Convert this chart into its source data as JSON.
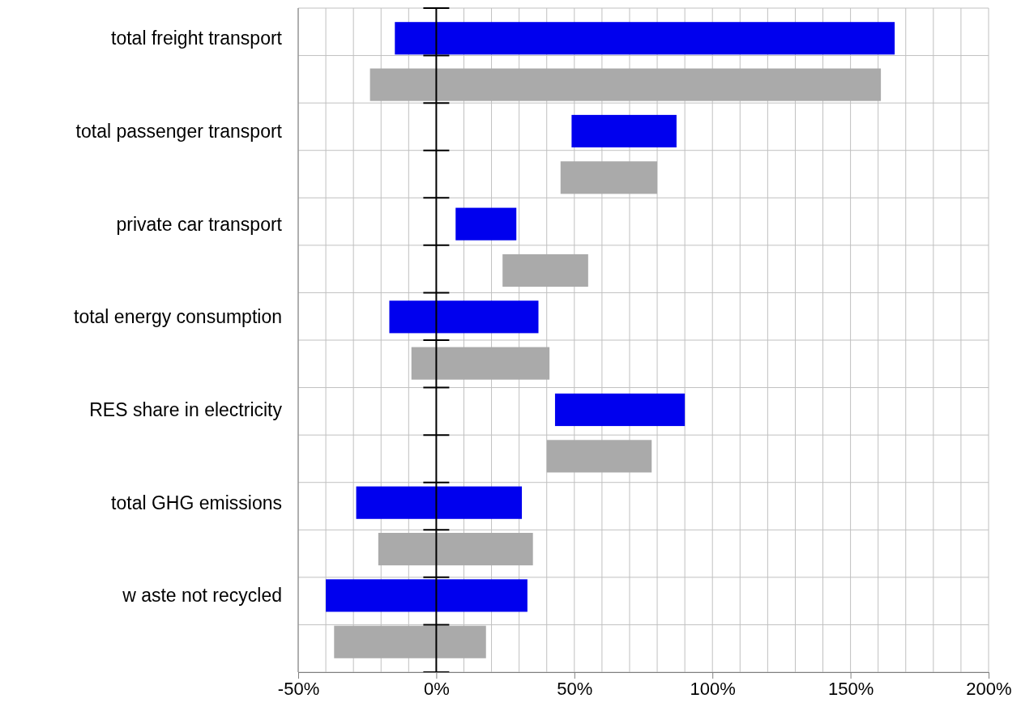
{
  "chart_data": {
    "type": "bar",
    "orientation": "horizontal",
    "categories": [
      "total freight transport",
      "total passenger transport",
      "private car transport",
      "total energy consumption",
      "RES share in electricity",
      "total GHG emissions",
      "w aste not recycled"
    ],
    "series": [
      {
        "color": "#0000ee",
        "base": [
          -15,
          49,
          7,
          -17,
          43,
          -29,
          -40
        ],
        "values": [
          181,
          38,
          22,
          54,
          47,
          60,
          73
        ]
      },
      {
        "color": "#aaaaaa",
        "base": [
          -24,
          45,
          24,
          -9,
          40,
          -21,
          -37
        ],
        "values": [
          185,
          35,
          31,
          50,
          38,
          56,
          55
        ]
      }
    ],
    "xlim": [
      -50,
      200
    ],
    "xticks": [
      {
        "value": -50,
        "label": "-50%"
      },
      {
        "value": -40,
        "label": null
      },
      {
        "value": -30,
        "label": null
      },
      {
        "value": -20,
        "label": null
      },
      {
        "value": -10,
        "label": null
      },
      {
        "value": 0,
        "label": "0%"
      },
      {
        "value": 10,
        "label": null
      },
      {
        "value": 20,
        "label": null
      },
      {
        "value": 30,
        "label": null
      },
      {
        "value": 40,
        "label": null
      },
      {
        "value": 50,
        "label": "50%"
      },
      {
        "value": 60,
        "label": null
      },
      {
        "value": 70,
        "label": null
      },
      {
        "value": 80,
        "label": null
      },
      {
        "value": 90,
        "label": null
      },
      {
        "value": 100,
        "label": "100%"
      },
      {
        "value": 110,
        "label": null
      },
      {
        "value": 120,
        "label": null
      },
      {
        "value": 130,
        "label": null
      },
      {
        "value": 140,
        "label": null
      },
      {
        "value": 150,
        "label": "150%"
      },
      {
        "value": 160,
        "label": null
      },
      {
        "value": 170,
        "label": null
      },
      {
        "value": 180,
        "label": null
      },
      {
        "value": 190,
        "label": null
      },
      {
        "value": 200,
        "label": "200%"
      }
    ],
    "grid": true,
    "ref_lines": [
      {
        "axis": "x",
        "value": 0,
        "color": "#000000"
      }
    ]
  }
}
